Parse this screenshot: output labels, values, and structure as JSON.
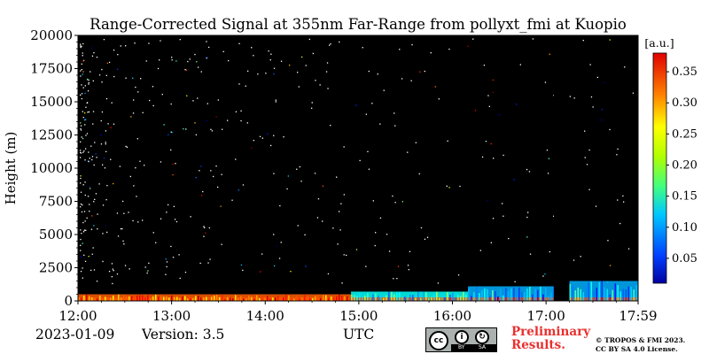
{
  "chart_data": {
    "type": "heatmap",
    "title": "Range-Corrected Signal at 355nm Far-Range from pollyxt_fmi at Kuopio",
    "ylabel": "Height (m)",
    "xlabel": "UTC",
    "x_ticks": [
      "12:00",
      "13:00",
      "14:00",
      "15:00",
      "16:00",
      "17:00",
      "17:59"
    ],
    "x_range": [
      "12:00",
      "17:59"
    ],
    "y_ticks": [
      "0",
      "2500",
      "5000",
      "7500",
      "10000",
      "12500",
      "15000",
      "17500",
      "20000"
    ],
    "ylim": [
      0,
      20000
    ],
    "colorbar": {
      "unit": "[a.u.]",
      "ticks": [
        "0.05",
        "0.10",
        "0.15",
        "0.20",
        "0.25",
        "0.30",
        "0.35"
      ],
      "range": [
        0.01,
        0.38
      ],
      "colormap": "jet"
    },
    "background_color": "#000000",
    "layers": [
      {
        "start": "12:00",
        "end": "14:55",
        "top_m": 500,
        "value": 0.3
      },
      {
        "start": "14:55",
        "end": "16:10",
        "top_m": 700,
        "value": 0.15
      },
      {
        "start": "16:10",
        "end": "17:05",
        "top_m": 1100,
        "value": 0.12
      },
      {
        "start": "17:05",
        "end": "17:15",
        "top_m": 0,
        "value": null
      },
      {
        "start": "17:15",
        "end": "17:59",
        "top_m": 1500,
        "value": 0.12
      }
    ]
  },
  "footer": {
    "date": "2023-01-09",
    "version": "Version: 3.5",
    "preliminary_line1": "Preliminary",
    "preliminary_line2": "Results.",
    "copyright_line1": "© TROPOS & FMI 2023.",
    "copyright_line2": "CC BY SA 4.0 License.",
    "license_cc": "cc",
    "license_by": "BY",
    "license_sa": "SA"
  },
  "colors": {
    "preliminary": "#e8302f",
    "plot_background": "#000000"
  }
}
